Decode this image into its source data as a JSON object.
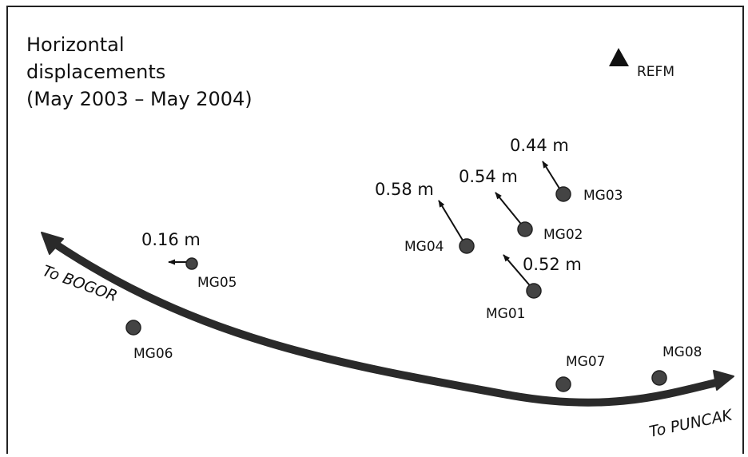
{
  "title": {
    "lines": [
      "Horizontal",
      "displacements",
      "(May 2003 – May 2004)"
    ]
  },
  "colors": {
    "frame": "#222222",
    "road": "#2a2a2a",
    "station_fill": "#444444",
    "station_stroke": "#222222",
    "arrow": "#111111",
    "text": "#111111"
  },
  "reference": {
    "label": "REFM",
    "icon": "triangle-icon"
  },
  "stations": [
    {
      "id": "MG01",
      "label": "MG01",
      "displacement": "0.52 m"
    },
    {
      "id": "MG02",
      "label": "MG02",
      "displacement": "0.54 m"
    },
    {
      "id": "MG03",
      "label": "MG03",
      "displacement": "0.44 m"
    },
    {
      "id": "MG04",
      "label": "MG04",
      "displacement": "0.58 m"
    },
    {
      "id": "MG05",
      "label": "MG05",
      "displacement": "0.16 m"
    },
    {
      "id": "MG06",
      "label": "MG06",
      "displacement": ""
    },
    {
      "id": "MG07",
      "label": "MG07",
      "displacement": ""
    },
    {
      "id": "MG08",
      "label": "MG08",
      "displacement": ""
    }
  ],
  "road": {
    "west_label": "To BOGOR",
    "east_label": "To PUNCAK"
  }
}
